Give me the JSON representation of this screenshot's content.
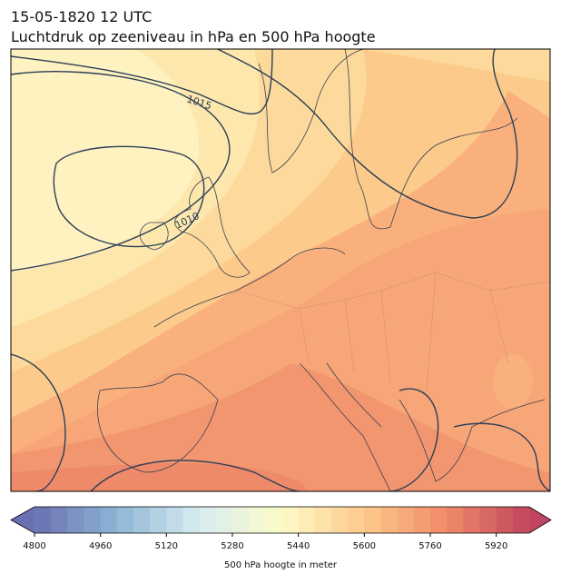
{
  "header": {
    "title": "15-05-1820 12 UTC",
    "subtitle": "Luchtdruk op zeeniveau in hPa en 500 hPa hoogte"
  },
  "map": {
    "contour_labels": [
      "1015",
      "1010"
    ]
  },
  "colorbar": {
    "label": "500 hPa hoogte in meter",
    "lim": [
      4800,
      6000
    ],
    "step": 40,
    "ticks": [
      4800,
      4960,
      5120,
      5280,
      5440,
      5600,
      5760,
      5920
    ],
    "colormap": [
      "#6b70b2",
      "#8cb5d4",
      "#d7ecf1",
      "#fdfbc8",
      "#fdc98a",
      "#f08a68",
      "#c0455e"
    ]
  }
}
